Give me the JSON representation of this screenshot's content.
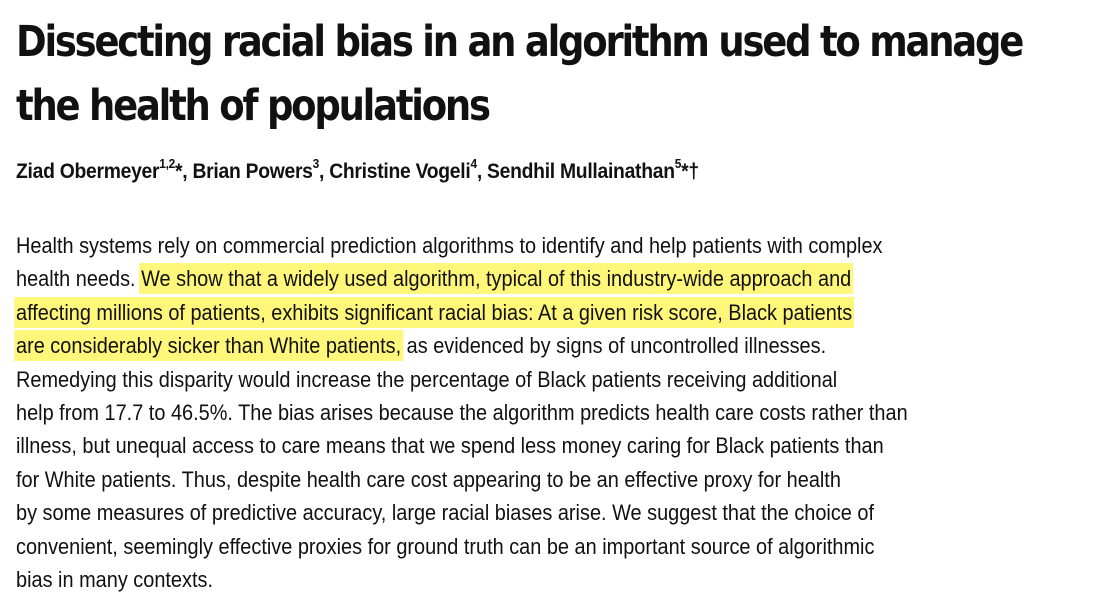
{
  "title": {
    "line1": "Dissecting racial bias in an algorithm used to manage",
    "line2": "the health of populations"
  },
  "authors": [
    {
      "name": "Ziad Obermeyer",
      "sup": "1,2",
      "mark": "*,"
    },
    {
      "name": " Brian Powers",
      "sup": "3",
      "mark": ","
    },
    {
      "name": " Christine Vogeli",
      "sup": "4",
      "mark": ","
    },
    {
      "name": " Sendhil Mullainathan",
      "sup": "5",
      "mark": "*†"
    }
  ],
  "abstract": {
    "l1": "Health systems rely on commercial prediction algorithms to identify and help patients with complex",
    "l2a": "health needs. ",
    "l2b": "We show that a widely used algorithm, typical of this industry-wide approach and",
    "l3": "affecting millions of patients, exhibits significant racial bias: At a given risk score, Black patients",
    "l4a": "are considerably sicker than White patients,",
    "l4b": " as evidenced by signs of uncontrolled illnesses.",
    "l5": "Remedying this disparity would increase the percentage of Black patients receiving additional",
    "l6": "help from 17.7 to 46.5%. The bias arises because the algorithm predicts health care costs rather than",
    "l7": "illness, but unequal access to care means that we spend less money caring for Black patients than",
    "l8": "for White patients. Thus, despite health care cost appearing to be an effective proxy for health",
    "l9": "by some measures of predictive accuracy, large racial biases arise. We suggest that the choice of",
    "l10": "convenient, seemingly effective proxies for ground truth can be an important source of algorithmic",
    "l11": "bias in many contexts."
  },
  "highlight_color": "#fff77a"
}
